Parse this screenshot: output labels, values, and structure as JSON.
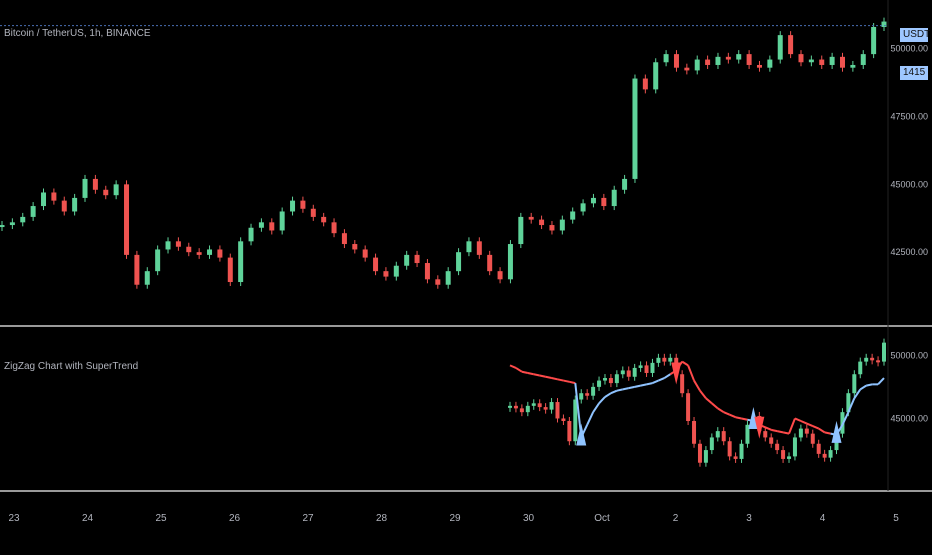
{
  "header": {
    "symbol_title": "Bitcoin / TetherUS, 1h, BINANCE",
    "indicator_title": "ZigZag Chart with SuperTrend"
  },
  "price_tag": {
    "line1": "USDT",
    "line2": "1415"
  },
  "colors": {
    "up": "#5fd39a",
    "down": "#ef5350",
    "supertrend_up": "#8fc3ff",
    "supertrend_down": "#ff4a4a",
    "separator": "#9a9a9a",
    "dotted_line": "#4a6fb5"
  },
  "chart_data": [
    {
      "type": "line",
      "x_tick_labels": [
        "23",
        "24",
        "25",
        "26",
        "27",
        "28",
        "29",
        "30",
        "Oct",
        "2",
        "3",
        "4",
        "5"
      ],
      "y_tick_labels": [
        "42500.00",
        "45000.00",
        "47500.00",
        "50000.00"
      ],
      "ylim": [
        40000,
        51500
      ],
      "series": [
        {
          "values": [
            43500,
            43600,
            43800,
            44200,
            44700,
            44400,
            44000,
            44500,
            45200,
            44800,
            44600,
            45000,
            42400,
            41300,
            41800,
            42600,
            42900,
            42700,
            42500,
            42400,
            42600,
            42300,
            41400,
            42900,
            43400,
            43600,
            43300,
            44000,
            44400,
            44100,
            43800,
            43600,
            43200,
            42800,
            42600,
            42300,
            41800,
            41600,
            42000,
            42400,
            42100,
            41500,
            41300,
            41800,
            42500,
            42900,
            42400,
            41800,
            41500,
            42800,
            43800,
            43700,
            43500,
            43300,
            43700,
            44000,
            44300,
            44500,
            44200,
            44800,
            45200,
            48900,
            48500,
            49500,
            49800,
            49300,
            49200,
            49600,
            49400,
            49700,
            49600,
            49800,
            49400,
            49300,
            49600,
            50500,
            49800,
            49500,
            49600,
            49400,
            49700,
            49300,
            49400,
            49800,
            50800,
            51000
          ]
        }
      ]
    },
    {
      "type": "line",
      "y_tick_labels": [
        "45000.00",
        "50000.00"
      ],
      "ylim": [
        39500,
        52000
      ],
      "series": [
        {
          "values": [
            46000,
            45800,
            45500,
            46000,
            46200,
            45900,
            45700,
            46300,
            45000,
            44800,
            43200,
            46500,
            47000,
            46800,
            47500,
            48000,
            48200,
            47800,
            48500,
            48800,
            48300,
            49000,
            49200,
            48600,
            49400,
            49800,
            49500,
            49800,
            48500,
            47000,
            44800,
            43000,
            41500,
            42500,
            43500,
            44000,
            43200,
            42000,
            41800,
            43000,
            44500,
            45200,
            44000,
            43500,
            43000,
            42500,
            41800,
            42000,
            43500,
            44200,
            43800,
            43000,
            42200,
            41900,
            42500,
            43800,
            45500,
            47000,
            48500,
            49500,
            49800,
            49600,
            49500,
            51000
          ]
        },
        {
          "values": [
            49200,
            49000,
            48700,
            48600,
            48500,
            48400,
            48300,
            48200,
            48100,
            48000,
            47900,
            47800,
            43500,
            44500,
            45500,
            46200,
            46700,
            47000,
            47200,
            47300,
            47400,
            47500,
            47600,
            47700,
            47800,
            48000,
            48200,
            48500,
            48800,
            49500,
            49200,
            48000,
            47200,
            46600,
            46200,
            45800,
            45500,
            45300,
            45100,
            45000,
            44900,
            44800,
            44500,
            44300,
            44100,
            44000,
            43900,
            43800,
            45000,
            44800,
            44600,
            44400,
            44200,
            43900,
            43800,
            43700,
            44500,
            45500,
            46600,
            47300,
            47600,
            47700,
            47700,
            48200
          ]
        }
      ]
    }
  ]
}
